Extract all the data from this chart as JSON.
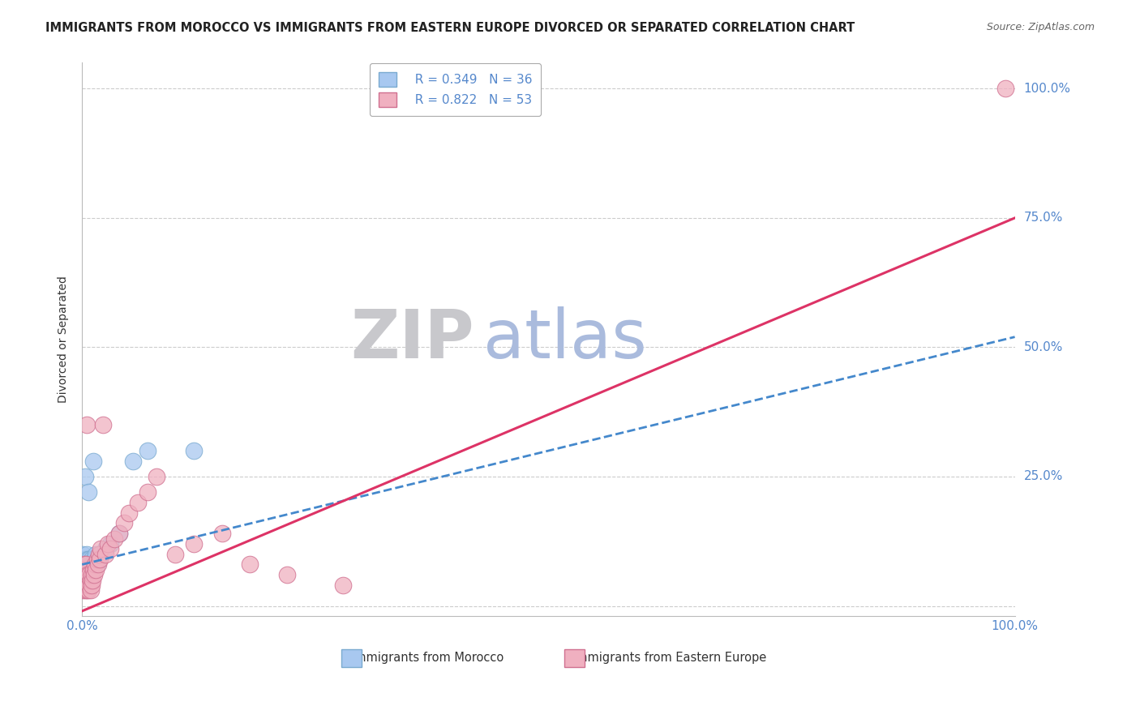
{
  "title": "IMMIGRANTS FROM MOROCCO VS IMMIGRANTS FROM EASTERN EUROPE DIVORCED OR SEPARATED CORRELATION CHART",
  "source": "Source: ZipAtlas.com",
  "ylabel": "Divorced or Separated",
  "xlim": [
    0,
    1
  ],
  "ylim": [
    -0.02,
    1.05
  ],
  "ytick_values": [
    0,
    0.25,
    0.5,
    0.75,
    1.0
  ],
  "ytick_labels": [
    "",
    "25.0%",
    "50.0%",
    "75.0%",
    "100.0%"
  ],
  "watermark_zip": "ZIP",
  "watermark_atlas": "atlas",
  "legend_r1": "R = 0.349",
  "legend_n1": "N = 36",
  "legend_r2": "R = 0.822",
  "legend_n2": "N = 53",
  "color_morocco": "#a8c8f0",
  "color_morocco_border": "#7aaad0",
  "color_morocco_line": "#4488cc",
  "color_eastern": "#f0b0c0",
  "color_eastern_border": "#d07090",
  "color_eastern_line": "#dd3366",
  "color_grid": "#cccccc",
  "color_watermark_zip": "#c8c8cc",
  "color_watermark_atlas": "#aabbdd",
  "background_color": "#ffffff",
  "tick_color": "#5588cc",
  "morocco_x": [
    0.001,
    0.001,
    0.001,
    0.002,
    0.002,
    0.002,
    0.003,
    0.003,
    0.003,
    0.004,
    0.004,
    0.005,
    0.005,
    0.005,
    0.006,
    0.006,
    0.007,
    0.007,
    0.008,
    0.008,
    0.009,
    0.01,
    0.01,
    0.011,
    0.012,
    0.013,
    0.015,
    0.016,
    0.018,
    0.02,
    0.025,
    0.03,
    0.04,
    0.055,
    0.07,
    0.12
  ],
  "morocco_y": [
    0.06,
    0.08,
    0.1,
    0.05,
    0.07,
    0.09,
    0.06,
    0.08,
    0.25,
    0.07,
    0.09,
    0.06,
    0.08,
    0.1,
    0.07,
    0.09,
    0.06,
    0.22,
    0.07,
    0.09,
    0.08,
    0.07,
    0.09,
    0.08,
    0.28,
    0.09,
    0.1,
    0.08,
    0.09,
    0.1,
    0.11,
    0.12,
    0.14,
    0.28,
    0.3,
    0.3
  ],
  "eastern_x": [
    0.001,
    0.001,
    0.001,
    0.002,
    0.002,
    0.002,
    0.003,
    0.003,
    0.003,
    0.004,
    0.004,
    0.004,
    0.005,
    0.005,
    0.005,
    0.006,
    0.006,
    0.007,
    0.007,
    0.008,
    0.008,
    0.009,
    0.009,
    0.01,
    0.01,
    0.011,
    0.012,
    0.013,
    0.014,
    0.015,
    0.016,
    0.017,
    0.018,
    0.019,
    0.02,
    0.022,
    0.025,
    0.028,
    0.03,
    0.035,
    0.04,
    0.045,
    0.05,
    0.06,
    0.07,
    0.08,
    0.1,
    0.12,
    0.15,
    0.18,
    0.22,
    0.28,
    0.99
  ],
  "eastern_y": [
    0.03,
    0.05,
    0.07,
    0.04,
    0.06,
    0.08,
    0.03,
    0.05,
    0.07,
    0.04,
    0.06,
    0.08,
    0.03,
    0.05,
    0.35,
    0.04,
    0.06,
    0.03,
    0.05,
    0.04,
    0.06,
    0.03,
    0.05,
    0.04,
    0.06,
    0.05,
    0.07,
    0.06,
    0.08,
    0.07,
    0.09,
    0.08,
    0.1,
    0.09,
    0.11,
    0.35,
    0.1,
    0.12,
    0.11,
    0.13,
    0.14,
    0.16,
    0.18,
    0.2,
    0.22,
    0.25,
    0.1,
    0.12,
    0.14,
    0.08,
    0.06,
    0.04,
    1.0
  ],
  "title_fontsize": 10.5,
  "source_fontsize": 9,
  "axis_label_fontsize": 10,
  "tick_fontsize": 11,
  "legend_fontsize": 11,
  "watermark_fontsize": 60
}
